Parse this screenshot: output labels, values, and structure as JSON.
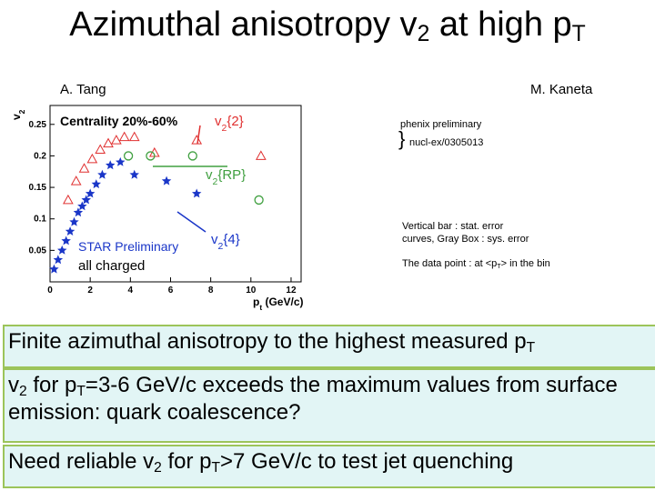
{
  "title": [
    "Azimuthal anisotropy v",
    "2",
    " at high p",
    "T"
  ],
  "authors": {
    "left": "A. Tang",
    "right": "M. Kaneta"
  },
  "chart_data": {
    "type": "scatter",
    "y_label": [
      "v",
      "2"
    ],
    "x_label": [
      "p",
      "t",
      " (GeV/c)"
    ],
    "annotations": {
      "centrality": "Centrality 20%-60%",
      "star": "STAR Preliminary",
      "charged": "all charged"
    },
    "xlim": [
      0,
      12.5
    ],
    "ylim": [
      0,
      0.28
    ],
    "xticks": [
      0,
      2,
      4,
      6,
      8,
      10,
      12
    ],
    "yticks": [
      0.05,
      0.1,
      0.15,
      0.2,
      0.25
    ],
    "series": [
      {
        "name": [
          "v",
          "2",
          "{2}"
        ],
        "color": "#e03030",
        "marker": "triangle",
        "x": [
          0.9,
          1.3,
          1.7,
          2.1,
          2.5,
          2.9,
          3.3,
          3.7,
          4.2,
          5.2,
          7.3,
          10.5
        ],
        "values": [
          0.13,
          0.16,
          0.18,
          0.195,
          0.21,
          0.22,
          0.225,
          0.23,
          0.23,
          0.205,
          0.225,
          0.2
        ]
      },
      {
        "name": [
          "v",
          "2",
          "{RP}"
        ],
        "color": "#40a040",
        "marker": "circle",
        "x": [
          3.9,
          5.0,
          7.1,
          10.4
        ],
        "values": [
          0.2,
          0.2,
          0.2,
          0.13
        ]
      },
      {
        "name": [
          "v",
          "2",
          "{4}"
        ],
        "color": "#1a36c8",
        "marker": "star",
        "x": [
          0.2,
          0.4,
          0.6,
          0.8,
          1.0,
          1.2,
          1.4,
          1.6,
          1.8,
          2.0,
          2.3,
          2.6,
          3.0,
          3.5,
          4.2,
          5.8,
          7.3
        ],
        "values": [
          0.02,
          0.035,
          0.05,
          0.065,
          0.08,
          0.095,
          0.11,
          0.12,
          0.13,
          0.14,
          0.155,
          0.17,
          0.185,
          0.19,
          0.17,
          0.16,
          0.14
        ]
      }
    ]
  },
  "notes": {
    "phenix": "phenix preliminary",
    "ref": "nucl-ex/0305013",
    "errors": [
      "Vertical bar : stat. error",
      "curves, Gray Box : sys. error"
    ],
    "point": [
      "The data point : at <p",
      "T",
      "> in the bin"
    ]
  },
  "bullets": [
    [
      "Finite azimuthal anisotropy to the highest measured p",
      "T"
    ],
    [
      "v",
      "2",
      " for p",
      "T",
      "=3-6 GeV/c exceeds the maximum values from surface emission: quark coalescence?"
    ],
    [
      "Need reliable v",
      "2",
      " for p",
      "T",
      ">7 GeV/c to test jet quenching"
    ]
  ]
}
